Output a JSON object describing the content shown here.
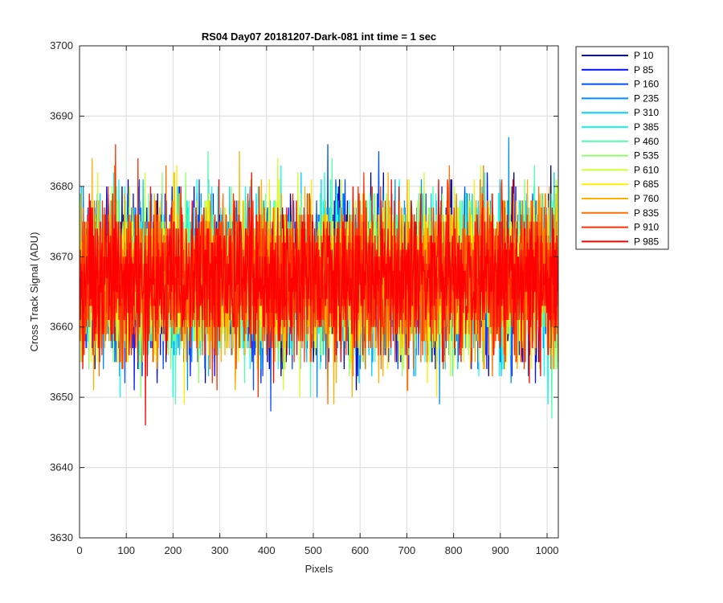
{
  "chart_data": {
    "type": "line",
    "title": "RS04 Day07 20181207-Dark-081 int time = 1 sec",
    "xlabel": "Pixels",
    "ylabel": "Cross Track Signal (ADU)",
    "xlim": [
      0,
      1024
    ],
    "ylim": [
      3630,
      3700
    ],
    "xticks": [
      0,
      100,
      200,
      300,
      400,
      500,
      600,
      700,
      800,
      900,
      1000
    ],
    "yticks": [
      3630,
      3640,
      3650,
      3660,
      3670,
      3680,
      3690,
      3700
    ],
    "grid": true,
    "legend_position": "outside-top-right",
    "x": {
      "start": 1,
      "end": 1024,
      "step": 1
    },
    "series": [
      {
        "name": "P 10",
        "color": "#00008f",
        "mean": 3667,
        "spread": 8.5,
        "seed": 11
      },
      {
        "name": "P 85",
        "color": "#0010ff",
        "mean": 3667,
        "spread": 8.5,
        "seed": 22
      },
      {
        "name": "P 160",
        "color": "#0050ff",
        "mean": 3667,
        "spread": 8.5,
        "seed": 33
      },
      {
        "name": "P 235",
        "color": "#008fff",
        "mean": 3667,
        "spread": 8.5,
        "seed": 44
      },
      {
        "name": "P 310",
        "color": "#00cfff",
        "mean": 3667,
        "spread": 8.5,
        "seed": 55
      },
      {
        "name": "P 385",
        "color": "#10ffef",
        "mean": 3667,
        "spread": 8.5,
        "seed": 66
      },
      {
        "name": "P 460",
        "color": "#50ffaf",
        "mean": 3667,
        "spread": 8.5,
        "seed": 77
      },
      {
        "name": "P 535",
        "color": "#8fff70",
        "mean": 3667,
        "spread": 8.5,
        "seed": 88
      },
      {
        "name": "P 610",
        "color": "#cfff30",
        "mean": 3667,
        "spread": 8.5,
        "seed": 99
      },
      {
        "name": "P 685",
        "color": "#ffef00",
        "mean": 3667,
        "spread": 8.5,
        "seed": 110
      },
      {
        "name": "P 760",
        "color": "#ffb000",
        "mean": 3667,
        "spread": 8.5,
        "seed": 121
      },
      {
        "name": "P 835",
        "color": "#ff7000",
        "mean": 3667,
        "spread": 8.5,
        "seed": 132
      },
      {
        "name": "P 910",
        "color": "#ff3000",
        "mean": 3667,
        "spread": 8.5,
        "seed": 143
      },
      {
        "name": "P 985",
        "color": "#ff0000",
        "mean": 3667,
        "spread": 8.5,
        "seed": 154
      }
    ]
  }
}
